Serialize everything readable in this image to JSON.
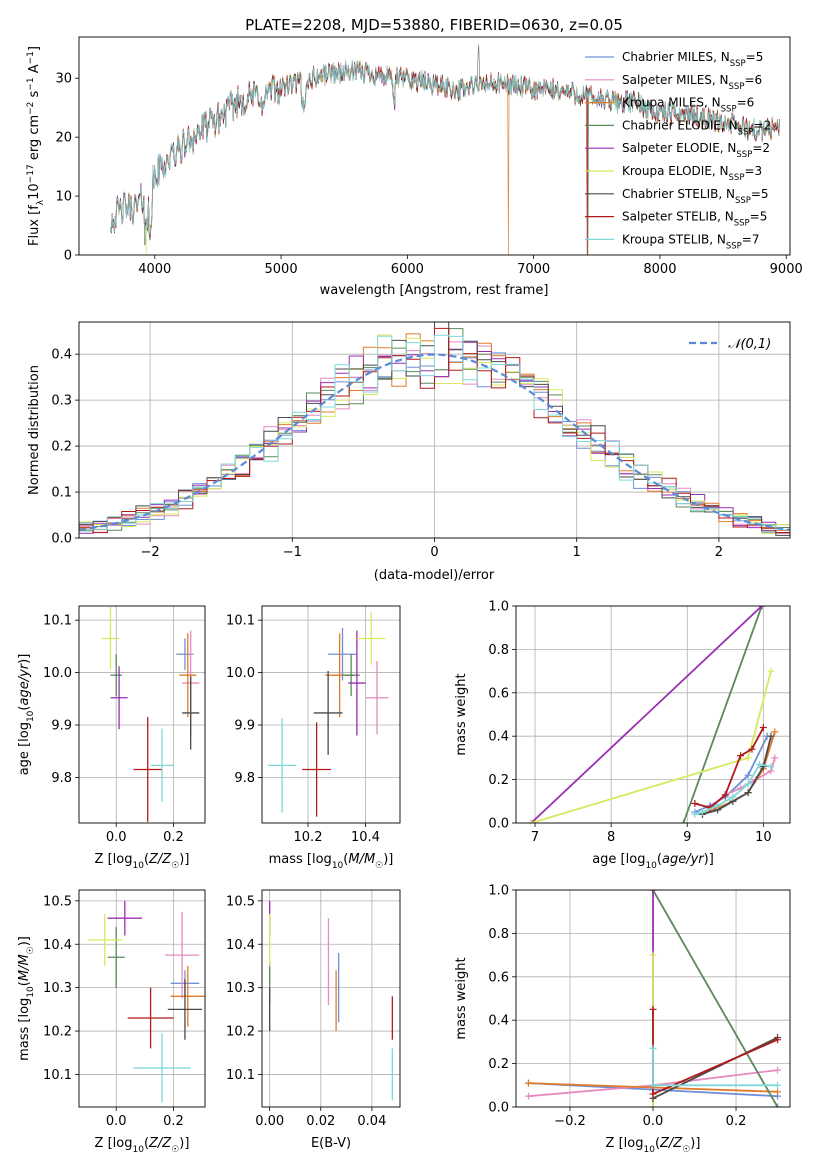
{
  "figure": {
    "title": "PLATE=2208, MJD=53880, FIBERID=0630, z=0.05"
  },
  "models": [
    {
      "label": "Chabrier MILES, N_SSP=5",
      "main": "Chabrier MILES, N",
      "sub": "SSP",
      "tail": "=5",
      "color": "#6f8fd8"
    },
    {
      "label": "Salpeter MILES, N_SSP=6",
      "main": "Salpeter MILES, N",
      "sub": "SSP",
      "tail": "=6",
      "color": "#e68ac4"
    },
    {
      "label": "Kroupa MILES, N_SSP=6",
      "main": "Kroupa MILES, N",
      "sub": "SSP",
      "tail": "=6",
      "color": "#e07b2a"
    },
    {
      "label": "Chabrier ELODIE, N_SSP=2",
      "main": "Chabrier ELODIE, N",
      "sub": "SSP",
      "tail": "=2",
      "color": "#5a8a5a"
    },
    {
      "label": "Salpeter ELODIE, N_SSP=2",
      "main": "Salpeter ELODIE, N",
      "sub": "SSP",
      "tail": "=2",
      "color": "#9a2fb0"
    },
    {
      "label": "Kroupa ELODIE, N_SSP=3",
      "main": "Kroupa ELODIE, N",
      "sub": "SSP",
      "tail": "=3",
      "color": "#d8e860"
    },
    {
      "label": "Chabrier STELIB, N_SSP=5",
      "main": "Chabrier STELIB, N",
      "sub": "SSP",
      "tail": "=5",
      "color": "#4a4a4a"
    },
    {
      "label": "Salpeter STELIB, N_SSP=5",
      "main": "Salpeter STELIB, N",
      "sub": "SSP",
      "tail": "=5",
      "color": "#b01a1a"
    },
    {
      "label": "Kroupa STELIB, N_SSP=7",
      "main": "Kroupa STELIB, N",
      "sub": "SSP",
      "tail": "=7",
      "color": "#7fd8d8"
    }
  ],
  "chart_data": [
    {
      "id": "spectrum",
      "type": "line",
      "xlabel": "wavelength [Angstrom, rest frame]",
      "ylabel": "Flux [f_λ 10^-17 erg cm^-2 s^-1 A^-1]",
      "xlim": [
        3400,
        9030
      ],
      "ylim": [
        0,
        37
      ],
      "xticks": [
        4000,
        5000,
        6000,
        7000,
        8000,
        9000
      ],
      "yticks": [
        0,
        10,
        20,
        30
      ],
      "grid": false,
      "legend": "top-right",
      "trend": {
        "x": [
          3650,
          3750,
          3850,
          3950,
          4050,
          4200,
          4350,
          4500,
          4650,
          4800,
          4950,
          5100,
          5250,
          5400,
          5550,
          5700,
          5850,
          6000,
          6200,
          6400,
          6600,
          6800,
          7000,
          7200,
          7400,
          7600,
          7800,
          8000,
          8200,
          8400,
          8600,
          8800,
          8950
        ],
        "y": [
          6,
          8,
          8,
          11,
          15,
          18,
          21,
          23,
          26,
          27,
          28,
          29,
          30,
          31,
          31,
          31,
          30,
          30,
          29,
          28,
          29,
          29,
          28,
          28,
          27,
          26,
          26,
          24,
          24,
          23,
          22,
          21,
          22
        ]
      }
    },
    {
      "id": "residuals",
      "type": "line",
      "xlabel": "(data-model)/error",
      "ylabel": "Normed distribution",
      "xlim": [
        -2.5,
        2.5
      ],
      "ylim": [
        0,
        0.47
      ],
      "xticks": [
        -2,
        -1,
        0,
        1,
        2
      ],
      "yticks": [
        0.0,
        0.1,
        0.2,
        0.3,
        0.4
      ],
      "grid": true,
      "legend": "top-right",
      "legend_label": "𝒩(0,1)",
      "bin_width": 0.1
    },
    {
      "id": "age_Z",
      "type": "scatter",
      "xlabel": "Z [log10(Z/Z☉)]",
      "ylabel": "age [log10(age/yr)]",
      "xlim": [
        -0.13,
        0.31
      ],
      "ylim": [
        9.713,
        10.127
      ],
      "xticks": [
        0.0,
        0.2
      ],
      "yticks": [
        9.8,
        9.9,
        10.0,
        10.1
      ],
      "grid": true,
      "points": [
        {
          "x": 0.24,
          "y": 10.035,
          "xerr": 0.03,
          "yerr": 0.03
        },
        {
          "x": 0.26,
          "y": 9.98,
          "xerr": 0.03,
          "yerr": 0.1
        },
        {
          "x": 0.25,
          "y": 9.995,
          "xerr": 0.03,
          "yerr": 0.08
        },
        {
          "x": 0.0,
          "y": 9.995,
          "xerr": 0.02,
          "yerr": 0.04
        },
        {
          "x": 0.01,
          "y": 9.952,
          "xerr": 0.03,
          "yerr": 0.06
        },
        {
          "x": -0.02,
          "y": 10.065,
          "xerr": 0.03,
          "yerr": 0.06
        },
        {
          "x": 0.26,
          "y": 9.923,
          "xerr": 0.03,
          "yerr": 0.07
        },
        {
          "x": 0.11,
          "y": 9.815,
          "xerr": 0.05,
          "yerr": 0.1
        },
        {
          "x": 0.16,
          "y": 9.823,
          "xerr": 0.04,
          "yerr": 0.07
        }
      ]
    },
    {
      "id": "age_mass",
      "type": "scatter",
      "xlabel": "mass [log10(M/M☉)]",
      "ylabel": "",
      "xlim": [
        10.04,
        10.52
      ],
      "ylim": [
        9.713,
        10.127
      ],
      "xticks": [
        10.2,
        10.4
      ],
      "yticks": [
        9.8,
        9.9,
        10.0,
        10.1
      ],
      "grid": true,
      "points": [
        {
          "x": 10.32,
          "y": 10.035,
          "xerr": 0.05,
          "yerr": 0.05
        },
        {
          "x": 10.44,
          "y": 9.952,
          "xerr": 0.04,
          "yerr": 0.07
        },
        {
          "x": 10.31,
          "y": 9.995,
          "xerr": 0.05,
          "yerr": 0.08
        },
        {
          "x": 10.35,
          "y": 9.995,
          "xerr": 0.03,
          "yerr": 0.04
        },
        {
          "x": 10.37,
          "y": 9.98,
          "xerr": 0.03,
          "yerr": 0.1
        },
        {
          "x": 10.42,
          "y": 10.065,
          "xerr": 0.05,
          "yerr": 0.05
        },
        {
          "x": 10.27,
          "y": 9.923,
          "xerr": 0.05,
          "yerr": 0.08
        },
        {
          "x": 10.23,
          "y": 9.815,
          "xerr": 0.05,
          "yerr": 0.09
        },
        {
          "x": 10.11,
          "y": 9.823,
          "xerr": 0.05,
          "yerr": 0.09
        }
      ]
    },
    {
      "id": "massweight_age",
      "type": "line",
      "xlabel": "age [log10(age/yr)]",
      "ylabel": "mass weight",
      "xlim": [
        6.75,
        10.35
      ],
      "ylim": [
        0,
        1
      ],
      "xticks": [
        7,
        8,
        9,
        10
      ],
      "yticks": [
        0.0,
        0.2,
        0.4,
        0.6,
        0.8,
        1.0
      ],
      "grid": true,
      "series": [
        {
          "x": [
            9.1,
            9.3,
            9.5,
            9.8,
            10.05
          ],
          "y": [
            0.05,
            0.08,
            0.12,
            0.22,
            0.4
          ]
        },
        {
          "x": [
            9.35,
            9.5,
            9.7,
            9.9,
            10.1,
            10.15
          ],
          "y": [
            0.08,
            0.13,
            0.16,
            0.2,
            0.24,
            0.3
          ]
        },
        {
          "x": [
            9.2,
            9.4,
            9.6,
            9.8,
            10.0,
            10.15
          ],
          "y": [
            0.04,
            0.07,
            0.1,
            0.14,
            0.25,
            0.42
          ]
        },
        {
          "x": [
            8.95,
            9.98
          ],
          "y": [
            0.0,
            1.0
          ]
        },
        {
          "x": [
            6.95,
            9.98
          ],
          "y": [
            0.0,
            1.0
          ]
        },
        {
          "x": [
            6.95,
            9.8,
            10.1
          ],
          "y": [
            0.0,
            0.3,
            0.7
          ]
        },
        {
          "x": [
            9.2,
            9.4,
            9.6,
            9.8,
            10.0,
            10.1
          ],
          "y": [
            0.04,
            0.06,
            0.1,
            0.14,
            0.26,
            0.4
          ]
        },
        {
          "x": [
            9.1,
            9.3,
            9.5,
            9.7,
            9.85,
            10.0
          ],
          "y": [
            0.09,
            0.07,
            0.13,
            0.31,
            0.34,
            0.44
          ]
        },
        {
          "x": [
            9.1,
            9.2,
            9.4,
            9.6,
            9.8,
            9.95,
            10.1
          ],
          "y": [
            0.04,
            0.05,
            0.08,
            0.12,
            0.18,
            0.27,
            0.26
          ]
        }
      ]
    },
    {
      "id": "mass_Z",
      "type": "scatter",
      "xlabel": "Z [log10(Z/Z☉)]",
      "ylabel": "mass [log10(M/M☉)]",
      "xlim": [
        -0.13,
        0.31
      ],
      "ylim": [
        10.025,
        10.525
      ],
      "xticks": [
        0.0,
        0.2
      ],
      "yticks": [
        10.1,
        10.2,
        10.3,
        10.4,
        10.5
      ],
      "grid": true,
      "points": [
        {
          "x": 0.24,
          "y": 10.31,
          "xerr": 0.05,
          "yerr": 0.03
        },
        {
          "x": 0.23,
          "y": 10.375,
          "xerr": 0.06,
          "yerr": 0.1
        },
        {
          "x": 0.25,
          "y": 10.28,
          "xerr": 0.06,
          "yerr": 0.07
        },
        {
          "x": 0.0,
          "y": 10.37,
          "xerr": 0.03,
          "yerr": 0.07
        },
        {
          "x": 0.03,
          "y": 10.46,
          "xerr": 0.06,
          "yerr": 0.04
        },
        {
          "x": -0.04,
          "y": 10.41,
          "xerr": 0.06,
          "yerr": 0.06
        },
        {
          "x": 0.24,
          "y": 10.25,
          "xerr": 0.06,
          "yerr": 0.07
        },
        {
          "x": 0.12,
          "y": 10.23,
          "xerr": 0.08,
          "yerr": 0.07
        },
        {
          "x": 0.16,
          "y": 10.115,
          "xerr": 0.1,
          "yerr": 0.08
        }
      ]
    },
    {
      "id": "mass_ebv",
      "type": "scatter",
      "xlabel": "E(B-V)",
      "ylabel": "",
      "xlim": [
        -0.003,
        0.051
      ],
      "ylim": [
        10.025,
        10.525
      ],
      "xticks": [
        0.0,
        0.02,
        0.04
      ],
      "yticks": [
        10.1,
        10.2,
        10.3,
        10.4,
        10.5
      ],
      "grid": true,
      "points": [
        {
          "x": 0.027,
          "y": 10.3,
          "xerr": 0,
          "yerr": 0.08
        },
        {
          "x": 0.023,
          "y": 10.36,
          "xerr": 0,
          "yerr": 0.1
        },
        {
          "x": 0.026,
          "y": 10.27,
          "xerr": 0,
          "yerr": 0.07
        },
        {
          "x": 0.0,
          "y": 10.31,
          "xerr": 0,
          "yerr": 0.05
        },
        {
          "x": 0.0,
          "y": 10.46,
          "xerr": 0,
          "yerr": 0.04
        },
        {
          "x": 0.0,
          "y": 10.41,
          "xerr": 0,
          "yerr": 0.06
        },
        {
          "x": 0.0,
          "y": 10.25,
          "xerr": 0,
          "yerr": 0.05
        },
        {
          "x": 0.048,
          "y": 10.23,
          "xerr": 0,
          "yerr": 0.05
        },
        {
          "x": 0.048,
          "y": 10.1,
          "xerr": 0,
          "yerr": 0.06
        }
      ]
    },
    {
      "id": "massweight_Z",
      "type": "line",
      "xlabel": "Z [log10(Z/Z☉)]",
      "ylabel": "mass weight",
      "xlim": [
        -0.33,
        0.33
      ],
      "ylim": [
        0,
        1
      ],
      "xticks": [
        -0.2,
        0.0,
        0.2
      ],
      "yticks": [
        0.0,
        0.2,
        0.4,
        0.6,
        0.8,
        1.0
      ],
      "grid": true,
      "series": [
        {
          "x": [
            -0.3,
            0.0,
            0.3
          ],
          "y": [
            0.11,
            0.08,
            0.05
          ]
        },
        {
          "x": [
            -0.3,
            0.0,
            0.3
          ],
          "y": [
            0.05,
            0.1,
            0.17
          ]
        },
        {
          "x": [
            -0.3,
            0.0,
            0.3
          ],
          "y": [
            0.11,
            0.09,
            0.07
          ]
        },
        {
          "x": [
            0.0,
            0.3
          ],
          "y": [
            1.0,
            0.0
          ]
        },
        {
          "x": [
            0.0,
            0.0
          ],
          "y": [
            0.0,
            1.0
          ]
        },
        {
          "x": [
            0.0,
            0.0
          ],
          "y": [
            0.0,
            0.7
          ]
        },
        {
          "x": [
            0.0,
            0.3
          ],
          "y": [
            0.04,
            0.32
          ]
        },
        {
          "x": [
            0.0,
            0.0,
            0.3
          ],
          "y": [
            0.45,
            0.06,
            0.31
          ]
        },
        {
          "x": [
            0.0,
            0.0,
            0.3
          ],
          "y": [
            0.27,
            0.1,
            0.1
          ]
        }
      ]
    }
  ]
}
